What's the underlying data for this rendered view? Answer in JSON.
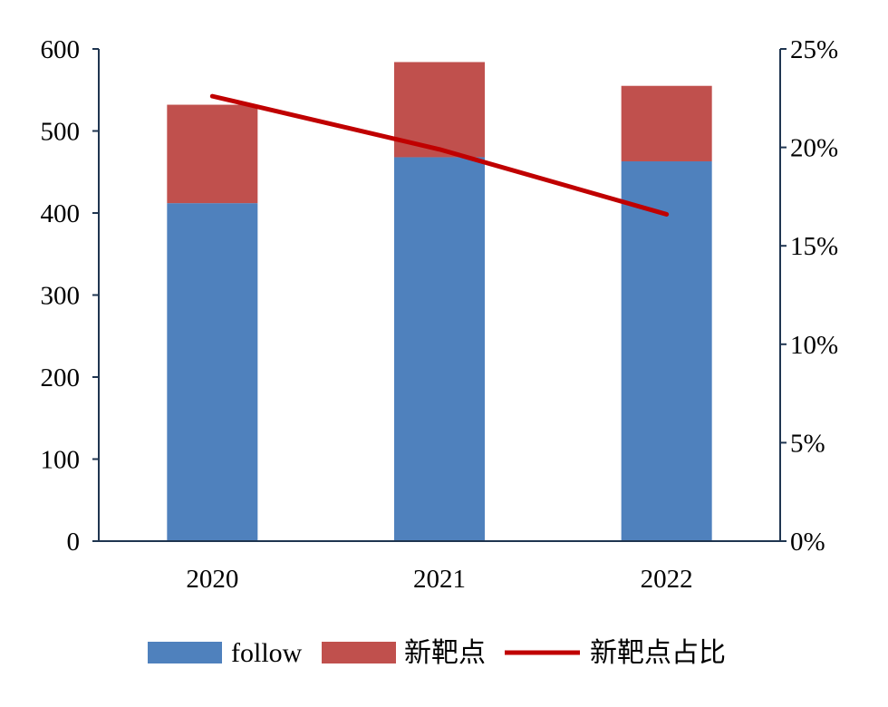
{
  "chart_data": {
    "type": "bar",
    "stacked": true,
    "categories": [
      "2020",
      "2021",
      "2022"
    ],
    "series": [
      {
        "name": "follow",
        "type": "bar",
        "axis": "left",
        "values": [
          412,
          468,
          463
        ]
      },
      {
        "name": "新靶点",
        "type": "bar",
        "axis": "left",
        "values": [
          120,
          116,
          92
        ]
      },
      {
        "name": "新靶点占比",
        "type": "line",
        "axis": "right",
        "values": [
          0.226,
          0.199,
          0.166
        ]
      }
    ],
    "y_left": {
      "ylim": [
        0,
        600
      ],
      "ticks": [
        "0",
        "100",
        "200",
        "300",
        "400",
        "500",
        "600"
      ]
    },
    "y_right": {
      "ylim": [
        0,
        0.25
      ],
      "ticks": [
        "0%",
        "5%",
        "10%",
        "15%",
        "20%",
        "25%"
      ]
    },
    "grid": false,
    "legend": "bottom",
    "colors": {
      "follow": "#4f81bd",
      "new_target": "#c0504d",
      "ratio_line": "#c00000",
      "axis": "#1f3550"
    }
  }
}
